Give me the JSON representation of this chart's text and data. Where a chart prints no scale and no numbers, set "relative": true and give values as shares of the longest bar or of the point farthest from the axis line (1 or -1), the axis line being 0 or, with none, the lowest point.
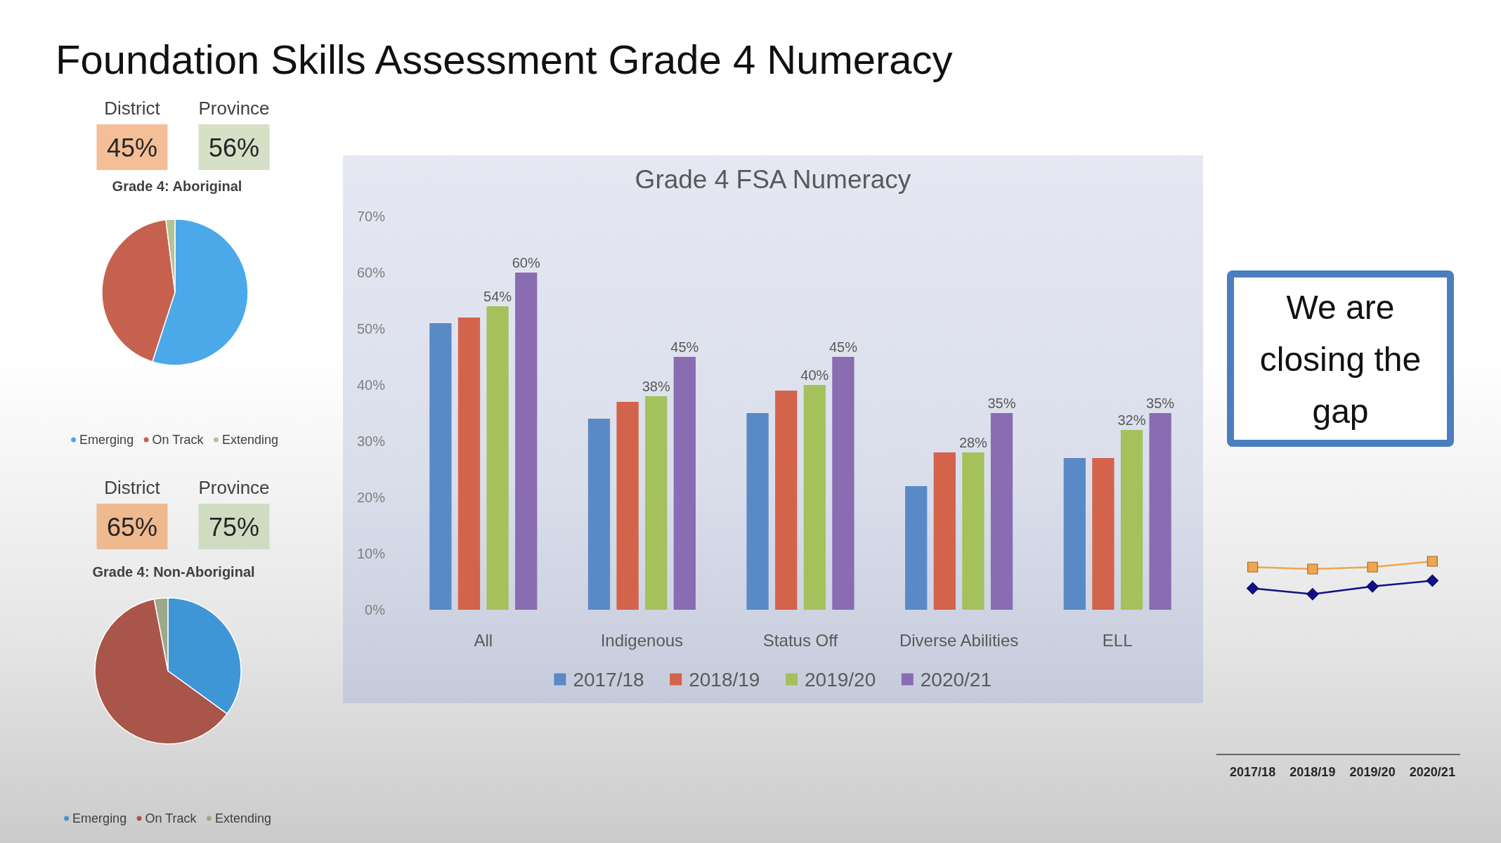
{
  "chart_data": [
    {
      "type": "other",
      "title": "Foundation Skills Assessment Grade 4 Numeracy"
    },
    {
      "type": "other",
      "categories": [
        "District",
        "Province"
      ],
      "colors": [
        "#f4bf97",
        "#d5e0c7"
      ],
      "value_labels": [
        "45%",
        "56%"
      ]
    },
    {
      "type": "pie",
      "title": "Grade 4: Aboriginal",
      "categories": [
        "Emerging",
        "On Track",
        "Extending"
      ],
      "values": [
        55,
        43,
        2
      ],
      "colors": [
        "#4ba9ea",
        "#c6614f",
        "#b4c394"
      ],
      "legend": "bottom"
    },
    {
      "type": "other",
      "categories": [
        "District",
        "Province"
      ],
      "colors": [
        "#eeb98f",
        "#cfdcc2"
      ],
      "value_labels": [
        "65%",
        "75%"
      ]
    },
    {
      "type": "pie",
      "title": "Grade 4: Non-Aboriginal",
      "categories": [
        "Emerging",
        "On Track",
        "Extending"
      ],
      "values": [
        35,
        62,
        3
      ],
      "colors": [
        "#3e96d6",
        "#a9554a",
        "#9ba88a"
      ],
      "legend": "bottom"
    },
    {
      "type": "bar",
      "title": "Grade 4 FSA Numeracy",
      "categories": [
        "All",
        "Indigenous",
        "Status Off",
        "Diverse Abilities",
        "ELL"
      ],
      "series": [
        {
          "name": "2017/18",
          "color": "#5a8ac6",
          "values": [
            51,
            34,
            35,
            22,
            27
          ]
        },
        {
          "name": "2018/19",
          "color": "#d4634b",
          "values": [
            52,
            37,
            39,
            28,
            27
          ]
        },
        {
          "name": "2019/20",
          "color": "#a4c15c",
          "values": [
            54,
            38,
            40,
            28,
            32
          ],
          "value_labels": [
            "54%",
            "38%",
            "40%",
            "28%",
            "32%"
          ]
        },
        {
          "name": "2020/21",
          "color": "#8a6cb2",
          "values": [
            60,
            45,
            45,
            35,
            35
          ],
          "value_labels": [
            "60%",
            "45%",
            "45%",
            "35%",
            "35%"
          ]
        }
      ],
      "ylim": [
        0,
        70
      ],
      "yticks": [
        {
          "value": 0,
          "label": "0%"
        },
        {
          "value": 10,
          "label": "10%"
        },
        {
          "value": 20,
          "label": "20%"
        },
        {
          "value": 30,
          "label": "30%"
        },
        {
          "value": 40,
          "label": "40%"
        },
        {
          "value": 50,
          "label": "50%"
        },
        {
          "value": 60,
          "label": "60%"
        },
        {
          "value": 70,
          "label": "70%"
        }
      ],
      "legend": "bottom"
    },
    {
      "type": "other",
      "annotations": [
        "We are closing the gap"
      ],
      "color": "#4a7ebf"
    },
    {
      "type": "line",
      "categories": [
        "2017/18",
        "2018/19",
        "2019/20",
        "2020/21"
      ],
      "relative": true,
      "series": [
        {
          "color": "#f0a54f",
          "marker": "square",
          "values": [
            0.97,
            0.96,
            0.97,
            1
          ]
        },
        {
          "color": "#10108a",
          "marker": "diamond",
          "values": [
            0.86,
            0.83,
            0.87,
            0.9
          ]
        }
      ]
    }
  ]
}
